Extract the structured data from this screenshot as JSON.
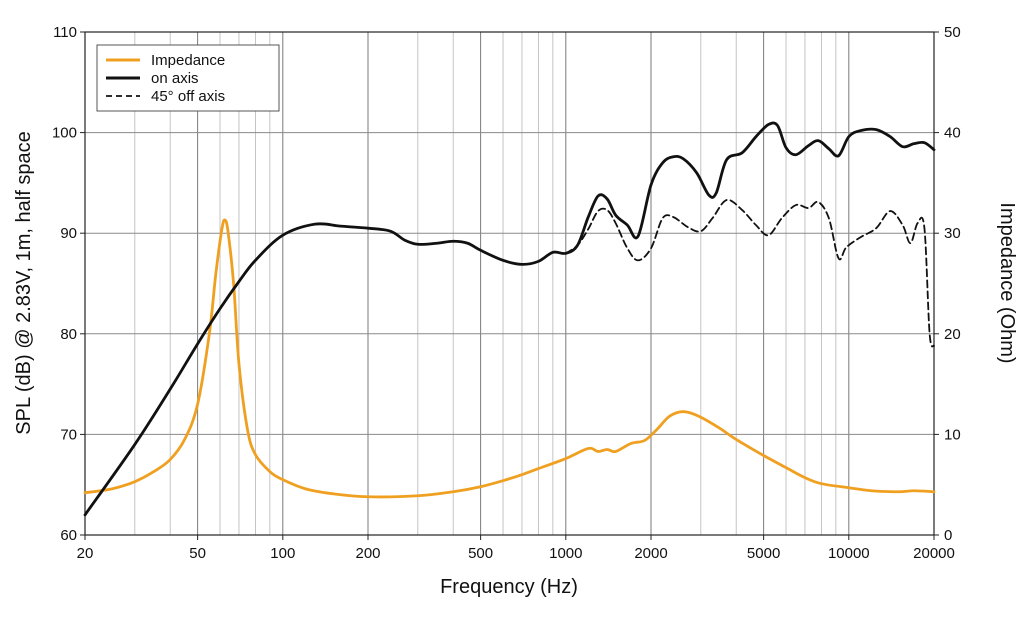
{
  "chart_data": {
    "type": "line",
    "title": "",
    "xlabel": "Frequency (Hz)",
    "ylabel_left": "SPL (dB) @ 2.83V, 1m, half space",
    "ylabel_right": "Impedance (Ohm)",
    "x_scale": "log",
    "xlim": [
      20,
      20000
    ],
    "ylim_left": [
      60,
      110
    ],
    "ylim_right": [
      0,
      50
    ],
    "grid": true,
    "legend_position": "top-left",
    "x_ticks": [
      20,
      50,
      100,
      200,
      500,
      1000,
      2000,
      5000,
      10000,
      20000
    ],
    "x_tick_labels": [
      "20",
      "50",
      "100",
      "200",
      "500",
      "1000",
      "2000",
      "5000",
      "10000",
      "20000"
    ],
    "y_left_ticks": [
      60,
      70,
      80,
      90,
      100,
      110
    ],
    "y_left_tick_labels": [
      "60",
      "70",
      "80",
      "90",
      "100",
      "110"
    ],
    "y_right_ticks": [
      0,
      10,
      20,
      30,
      40,
      50
    ],
    "y_right_tick_labels": [
      "0",
      "10",
      "20",
      "30",
      "40",
      "50"
    ],
    "series": [
      {
        "name": "Impedance",
        "axis": "right",
        "color": "#f0a020",
        "dash": "solid",
        "points": [
          [
            20,
            4.2
          ],
          [
            25,
            4.6
          ],
          [
            30,
            5.3
          ],
          [
            35,
            6.3
          ],
          [
            40,
            7.5
          ],
          [
            45,
            9.5
          ],
          [
            50,
            13
          ],
          [
            55,
            20
          ],
          [
            58,
            26
          ],
          [
            61,
            30.5
          ],
          [
            62.5,
            31.3
          ],
          [
            64,
            30.2
          ],
          [
            67,
            25
          ],
          [
            70,
            17
          ],
          [
            75,
            10.5
          ],
          [
            80,
            8
          ],
          [
            90,
            6.3
          ],
          [
            100,
            5.5
          ],
          [
            120,
            4.6
          ],
          [
            150,
            4.1
          ],
          [
            200,
            3.8
          ],
          [
            300,
            3.9
          ],
          [
            400,
            4.3
          ],
          [
            500,
            4.8
          ],
          [
            600,
            5.4
          ],
          [
            700,
            6
          ],
          [
            800,
            6.6
          ],
          [
            1000,
            7.6
          ],
          [
            1200,
            8.6
          ],
          [
            1300,
            8.3
          ],
          [
            1400,
            8.5
          ],
          [
            1500,
            8.3
          ],
          [
            1700,
            9.1
          ],
          [
            1900,
            9.4
          ],
          [
            2100,
            10.5
          ],
          [
            2300,
            11.7
          ],
          [
            2500,
            12.2
          ],
          [
            2700,
            12.2
          ],
          [
            3000,
            11.7
          ],
          [
            3500,
            10.6
          ],
          [
            4000,
            9.5
          ],
          [
            5000,
            7.9
          ],
          [
            6000,
            6.7
          ],
          [
            7000,
            5.7
          ],
          [
            8000,
            5.1
          ],
          [
            10000,
            4.7
          ],
          [
            12000,
            4.4
          ],
          [
            15000,
            4.3
          ],
          [
            17000,
            4.4
          ],
          [
            20000,
            4.3
          ]
        ]
      },
      {
        "name": "on axis",
        "axis": "left",
        "color": "#111111",
        "dash": "solid",
        "points": [
          [
            20,
            62
          ],
          [
            30,
            69
          ],
          [
            40,
            74.5
          ],
          [
            50,
            79
          ],
          [
            60,
            82.5
          ],
          [
            70,
            85.2
          ],
          [
            80,
            87.3
          ],
          [
            100,
            89.8
          ],
          [
            130,
            90.9
          ],
          [
            160,
            90.7
          ],
          [
            200,
            90.5
          ],
          [
            240,
            90.2
          ],
          [
            270,
            89.3
          ],
          [
            300,
            88.9
          ],
          [
            350,
            89
          ],
          [
            400,
            89.2
          ],
          [
            450,
            89
          ],
          [
            500,
            88.3
          ],
          [
            600,
            87.3
          ],
          [
            700,
            86.9
          ],
          [
            800,
            87.2
          ],
          [
            900,
            88.1
          ],
          [
            1000,
            88
          ],
          [
            1100,
            88.8
          ],
          [
            1200,
            91.6
          ],
          [
            1300,
            93.7
          ],
          [
            1400,
            93.4
          ],
          [
            1500,
            91.8
          ],
          [
            1650,
            90.8
          ],
          [
            1800,
            89.7
          ],
          [
            2000,
            94.8
          ],
          [
            2200,
            97
          ],
          [
            2400,
            97.6
          ],
          [
            2600,
            97.4
          ],
          [
            2900,
            96
          ],
          [
            3200,
            93.8
          ],
          [
            3400,
            94
          ],
          [
            3700,
            97.3
          ],
          [
            4200,
            98
          ],
          [
            4700,
            99.6
          ],
          [
            5200,
            100.8
          ],
          [
            5600,
            100.7
          ],
          [
            6000,
            98.5
          ],
          [
            6500,
            97.8
          ],
          [
            7200,
            98.7
          ],
          [
            7800,
            99.2
          ],
          [
            8500,
            98.4
          ],
          [
            9200,
            97.7
          ],
          [
            10000,
            99.6
          ],
          [
            11000,
            100.2
          ],
          [
            12500,
            100.3
          ],
          [
            14000,
            99.6
          ],
          [
            15500,
            98.6
          ],
          [
            17000,
            98.9
          ],
          [
            18500,
            99
          ],
          [
            20000,
            98.3
          ]
        ]
      },
      {
        "name": "45° off axis",
        "axis": "left",
        "color": "#111111",
        "dash": "dashed",
        "points": [
          [
            1000,
            88
          ],
          [
            1100,
            88.8
          ],
          [
            1200,
            90.4
          ],
          [
            1300,
            92.2
          ],
          [
            1400,
            92.3
          ],
          [
            1500,
            91
          ],
          [
            1650,
            88.5
          ],
          [
            1800,
            87.3
          ],
          [
            2000,
            88.5
          ],
          [
            2200,
            91.5
          ],
          [
            2400,
            91.6
          ],
          [
            2700,
            90.6
          ],
          [
            3000,
            90.2
          ],
          [
            3300,
            91.5
          ],
          [
            3700,
            93.3
          ],
          [
            4200,
            92.3
          ],
          [
            4700,
            90.8
          ],
          [
            5200,
            89.8
          ],
          [
            5800,
            91.5
          ],
          [
            6500,
            92.8
          ],
          [
            7200,
            92.5
          ],
          [
            7800,
            93.1
          ],
          [
            8500,
            91.5
          ],
          [
            9200,
            87.5
          ],
          [
            9800,
            88.6
          ],
          [
            11000,
            89.6
          ],
          [
            12500,
            90.5
          ],
          [
            14000,
            92.2
          ],
          [
            15500,
            90.8
          ],
          [
            16500,
            89
          ],
          [
            17500,
            91
          ],
          [
            18500,
            90.5
          ],
          [
            19300,
            80
          ],
          [
            20000,
            78.8
          ]
        ]
      }
    ]
  }
}
